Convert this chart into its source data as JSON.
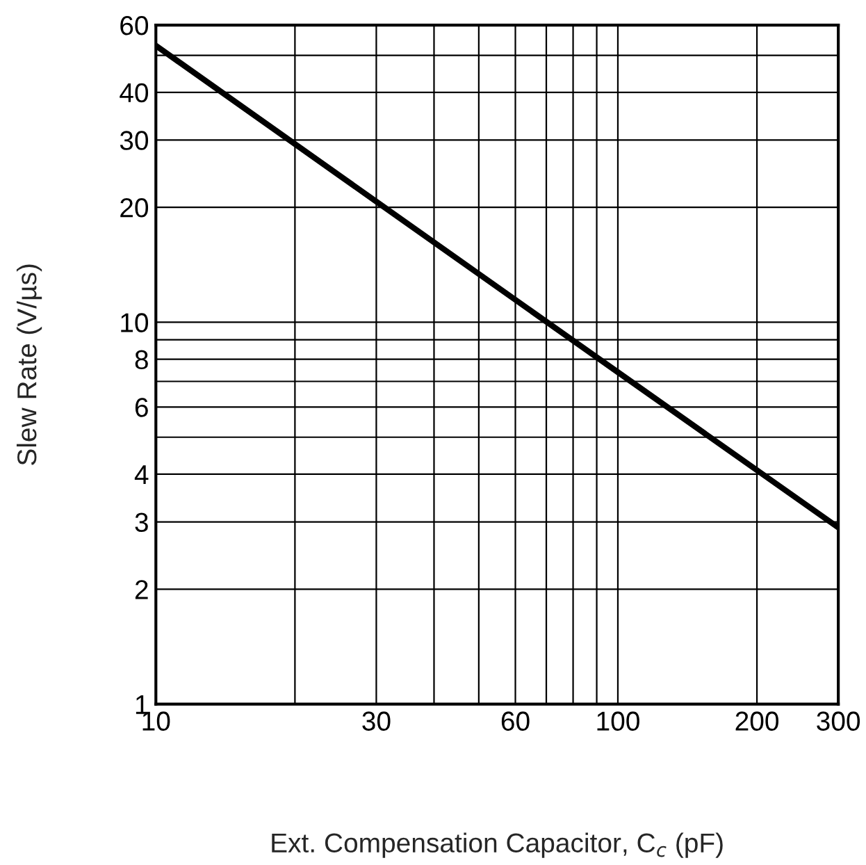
{
  "chart_data": {
    "type": "line",
    "xlabel": "Ext. Compensation Capacitor, C$_{c}$ (pF)",
    "ylabel": "Slew Rate (V/µs)",
    "x": [
      10,
      30,
      100,
      300
    ],
    "series": [
      {
        "color": "#000000",
        "values": [
          53,
          20.7,
          7.4,
          2.9
        ]
      }
    ],
    "log": "xy",
    "xlim": [
      10,
      300
    ],
    "ylim": [
      1,
      60
    ],
    "xticks": [
      10,
      {
        "value": 20,
        "label": null
      },
      30,
      {
        "value": 40,
        "label": null
      },
      {
        "value": 50,
        "label": null
      },
      60,
      {
        "value": 70,
        "label": null
      },
      {
        "value": 80,
        "label": null
      },
      {
        "value": 90,
        "label": null
      },
      100,
      200,
      300
    ],
    "yticks": [
      1,
      2,
      3,
      4,
      {
        "value": 5,
        "label": null
      },
      6,
      {
        "value": 7,
        "label": null
      },
      8,
      {
        "value": 9,
        "label": null
      },
      10,
      20,
      30,
      40,
      {
        "value": 50,
        "label": null
      },
      60
    ],
    "grid": true,
    "marker": "none",
    "line_style": "solid"
  }
}
